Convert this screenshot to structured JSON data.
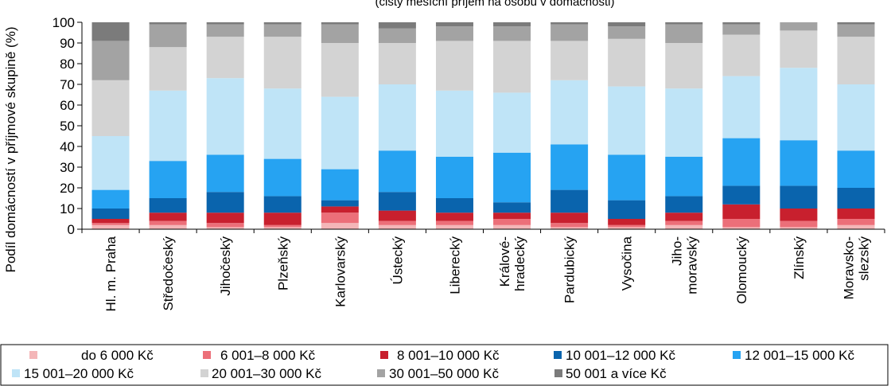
{
  "chart_data": {
    "type": "bar",
    "stacked": true,
    "subtitle": "(čistý měsíční příjem na osobu v domácnosti)",
    "ylabel": "Podíl domácností v příjmové skupině (%)",
    "xlabel": "",
    "ylim": [
      0,
      100
    ],
    "yticks": [
      0,
      10,
      20,
      30,
      40,
      50,
      60,
      70,
      80,
      90,
      100
    ],
    "grid": false,
    "legend_position": "bottom",
    "categories": [
      [
        "Hl. m. Praha"
      ],
      [
        "Středočeský"
      ],
      [
        "Jihočeský"
      ],
      [
        "Plzeňský"
      ],
      [
        "Karlovarský"
      ],
      [
        "Ústecký"
      ],
      [
        "Liberecký"
      ],
      [
        "Králové-",
        "hradecký"
      ],
      [
        "Pardubický"
      ],
      [
        "Vysočina"
      ],
      [
        "Jiho-",
        "moravský"
      ],
      [
        "Olomoucký"
      ],
      [
        "Zlínský"
      ],
      [
        "Moravsko-",
        "slezský"
      ]
    ],
    "series": [
      {
        "name": "do 6 000 Kč",
        "color": "#f4b6b8",
        "values": [
          2,
          2,
          1,
          1,
          3,
          2,
          2,
          2,
          1,
          1,
          2,
          1,
          1,
          2
        ]
      },
      {
        "name": "6 001–8 000 Kč",
        "color": "#ec6f79",
        "values": [
          1,
          2,
          2,
          1,
          5,
          2,
          2,
          3,
          2,
          1,
          2,
          4,
          3,
          3
        ]
      },
      {
        "name": "8 001–10 000 Kč",
        "color": "#c8202e",
        "values": [
          2,
          4,
          5,
          6,
          3,
          5,
          4,
          3,
          5,
          3,
          4,
          7,
          6,
          5
        ]
      },
      {
        "name": "10 001–12 000 Kč",
        "color": "#0a64ad",
        "values": [
          5,
          7,
          10,
          8,
          3,
          9,
          7,
          5,
          11,
          9,
          8,
          9,
          11,
          10
        ]
      },
      {
        "name": "12 001–15 000 Kč",
        "color": "#26a3f2",
        "values": [
          9,
          18,
          18,
          18,
          15,
          20,
          20,
          24,
          22,
          22,
          19,
          23,
          22,
          18
        ]
      },
      {
        "name": "15 001–20 000 Kč",
        "color": "#bfe4f7",
        "values": [
          26,
          34,
          37,
          34,
          35,
          32,
          32,
          29,
          31,
          33,
          33,
          30,
          35,
          32
        ]
      },
      {
        "name": "20 001–30 000 Kč",
        "color": "#d3d3d3",
        "values": [
          27,
          21,
          20,
          25,
          26,
          20,
          24,
          25,
          19,
          23,
          22,
          20,
          18,
          23
        ]
      },
      {
        "name": "30 001–50 000 Kč",
        "color": "#a3a3a3",
        "values": [
          19,
          11,
          6,
          6,
          9,
          7,
          7,
          7,
          8,
          6,
          9,
          5,
          4,
          6
        ]
      },
      {
        "name": "50 001 a více Kč",
        "color": "#7b7b7b",
        "values": [
          9,
          1,
          1,
          1,
          1,
          3,
          2,
          2,
          1,
          2,
          1,
          1,
          0,
          1
        ]
      }
    ]
  }
}
